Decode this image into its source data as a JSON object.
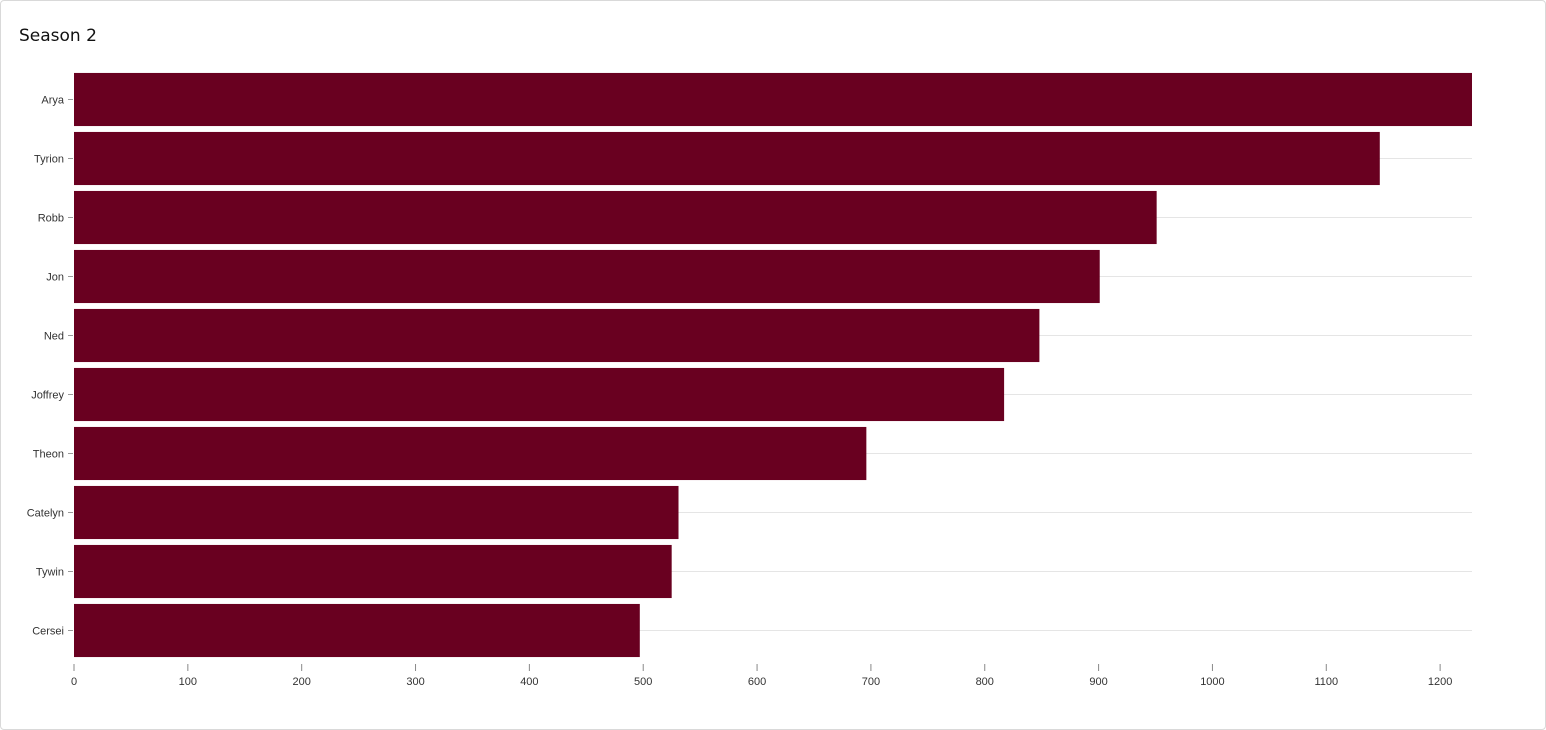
{
  "title": "Season 2",
  "chart_data": {
    "type": "bar",
    "orientation": "horizontal",
    "title": "Season 2",
    "categories": [
      "Arya",
      "Tyrion",
      "Robb",
      "Jon",
      "Ned",
      "Joffrey",
      "Theon",
      "Catelyn",
      "Tywin",
      "Cersei"
    ],
    "values": [
      1228,
      1147,
      951,
      901,
      848,
      817,
      696,
      531,
      525,
      497
    ],
    "xlabel": "",
    "ylabel": "",
    "xlim": [
      0,
      1228
    ],
    "xticks": [
      0,
      100,
      200,
      300,
      400,
      500,
      600,
      700,
      800,
      900,
      1000,
      1100,
      1200
    ],
    "grid": true,
    "bar_color": "#690020",
    "grid_color": "#e5e5e5"
  }
}
